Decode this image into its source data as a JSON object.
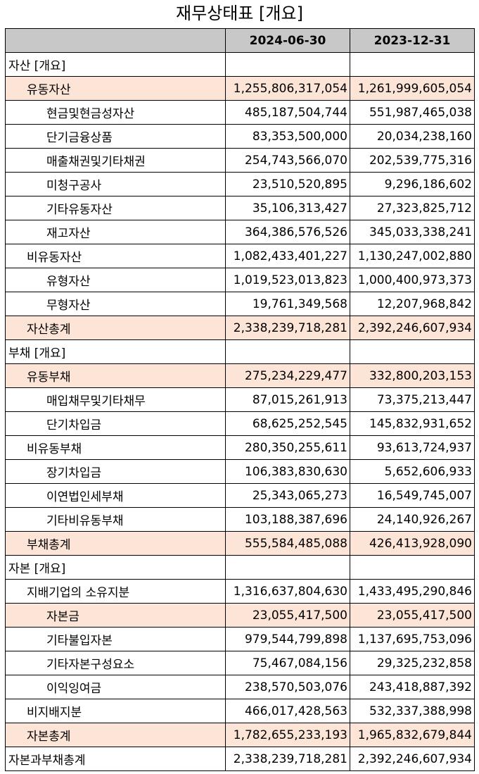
{
  "title": "재무상태표 [개요]",
  "columns": [
    "",
    "2024-06-30",
    "2023-12-31"
  ],
  "rows": [
    {
      "label": "자산 [개요]",
      "level": 0,
      "hl": false,
      "v1": "",
      "v2": ""
    },
    {
      "label": "유동자산",
      "level": 1,
      "hl": true,
      "v1": "1,255,806,317,054",
      "v2": "1,261,999,605,054"
    },
    {
      "label": "현금및현금성자산",
      "level": 2,
      "hl": false,
      "v1": "485,187,504,744",
      "v2": "551,987,465,038"
    },
    {
      "label": "단기금융상품",
      "level": 2,
      "hl": false,
      "v1": "83,353,500,000",
      "v2": "20,034,238,160"
    },
    {
      "label": "매출채권및기타채권",
      "level": 2,
      "hl": false,
      "v1": "254,743,566,070",
      "v2": "202,539,775,316"
    },
    {
      "label": "미청구공사",
      "level": 2,
      "hl": false,
      "v1": "23,510,520,895",
      "v2": "9,296,186,602"
    },
    {
      "label": "기타유동자산",
      "level": 2,
      "hl": false,
      "v1": "35,106,313,427",
      "v2": "27,323,825,712"
    },
    {
      "label": "재고자산",
      "level": 2,
      "hl": false,
      "v1": "364,386,576,526",
      "v2": "345,033,338,241"
    },
    {
      "label": "비유동자산",
      "level": 1,
      "hl": false,
      "v1": "1,082,433,401,227",
      "v2": "1,130,247,002,880"
    },
    {
      "label": "유형자산",
      "level": 2,
      "hl": false,
      "v1": "1,019,523,013,823",
      "v2": "1,000,400,973,373"
    },
    {
      "label": "무형자산",
      "level": 2,
      "hl": false,
      "v1": "19,761,349,568",
      "v2": "12,207,968,842"
    },
    {
      "label": "자산총계",
      "level": 1,
      "hl": true,
      "v1": "2,338,239,718,281",
      "v2": "2,392,246,607,934"
    },
    {
      "label": "부채 [개요]",
      "level": 0,
      "hl": false,
      "v1": "",
      "v2": ""
    },
    {
      "label": "유동부채",
      "level": 1,
      "hl": true,
      "v1": "275,234,229,477",
      "v2": "332,800,203,153"
    },
    {
      "label": "매입채무및기타채무",
      "level": 2,
      "hl": false,
      "v1": "87,015,261,913",
      "v2": "73,375,213,447"
    },
    {
      "label": "단기차입금",
      "level": 2,
      "hl": false,
      "v1": "68,625,252,545",
      "v2": "145,832,931,652"
    },
    {
      "label": "비유동부채",
      "level": 1,
      "hl": false,
      "v1": "280,350,255,611",
      "v2": "93,613,724,937"
    },
    {
      "label": "장기차입금",
      "level": 2,
      "hl": false,
      "v1": "106,383,830,630",
      "v2": "5,652,606,933"
    },
    {
      "label": "이연법인세부채",
      "level": 2,
      "hl": false,
      "v1": "25,343,065,273",
      "v2": "16,549,745,007"
    },
    {
      "label": "기타비유동부채",
      "level": 2,
      "hl": false,
      "v1": "103,188,387,696",
      "v2": "24,140,926,267"
    },
    {
      "label": "부채총계",
      "level": 1,
      "hl": true,
      "v1": "555,584,485,088",
      "v2": "426,413,928,090"
    },
    {
      "label": "자본 [개요]",
      "level": 0,
      "hl": false,
      "v1": "",
      "v2": ""
    },
    {
      "label": "지배기업의 소유지분",
      "level": 1,
      "hl": false,
      "v1": "1,316,637,804,630",
      "v2": "1,433,495,290,846"
    },
    {
      "label": "자본금",
      "level": 2,
      "hl": true,
      "v1": "23,055,417,500",
      "v2": "23,055,417,500"
    },
    {
      "label": "기타불입자본",
      "level": 2,
      "hl": false,
      "v1": "979,544,799,898",
      "v2": "1,137,695,753,096"
    },
    {
      "label": "기타자본구성요소",
      "level": 2,
      "hl": false,
      "v1": "75,467,084,156",
      "v2": "29,325,232,858"
    },
    {
      "label": "이익잉여금",
      "level": 2,
      "hl": false,
      "v1": "238,570,503,076",
      "v2": "243,418,887,392"
    },
    {
      "label": "비지배지분",
      "level": 1,
      "hl": false,
      "v1": "466,017,428,563",
      "v2": "532,337,388,998"
    },
    {
      "label": "자본총계",
      "level": 1,
      "hl": true,
      "v1": "1,782,655,233,193",
      "v2": "1,965,832,679,844"
    },
    {
      "label": "자본과부채총계",
      "level": 0,
      "hl": false,
      "v1": "2,338,239,718,281",
      "v2": "2,392,246,607,934"
    }
  ]
}
